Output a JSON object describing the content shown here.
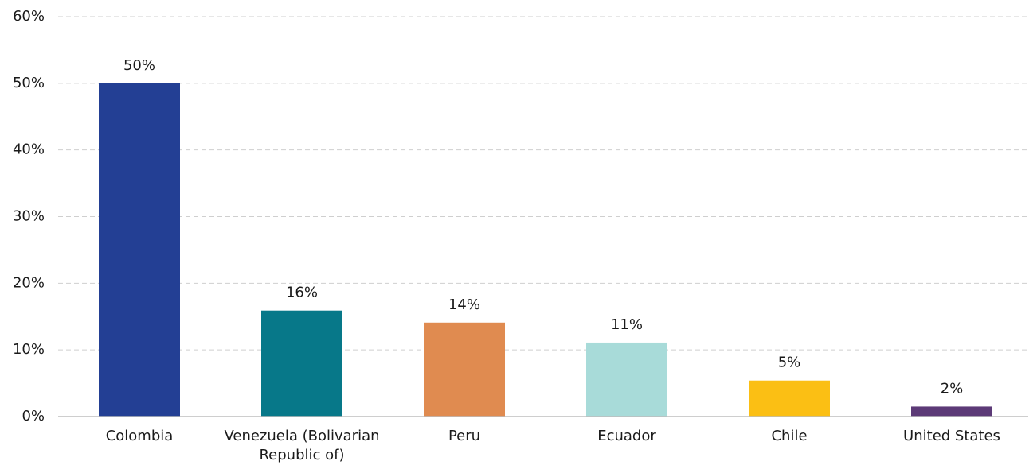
{
  "chart_data": {
    "type": "bar",
    "categories": [
      "Colombia",
      "Venezuela (Bolivarian Republic of)",
      "Peru",
      "Ecuador",
      "Chile",
      "United States"
    ],
    "values": [
      50,
      15.9,
      14.1,
      11.1,
      5.4,
      1.5
    ],
    "value_labels": [
      "50%",
      "16%",
      "14%",
      "11%",
      "5%",
      "2%"
    ],
    "colors": [
      "#233f94",
      "#077889",
      "#e08b50",
      "#a8dbd9",
      "#fbbf14",
      "#5c3a77"
    ],
    "ylim": [
      0,
      60
    ],
    "yticks": [
      {
        "value": 0,
        "label": "0%"
      },
      {
        "value": 10,
        "label": "10%"
      },
      {
        "value": 20,
        "label": "20%"
      },
      {
        "value": 30,
        "label": "30%"
      },
      {
        "value": 40,
        "label": "40%"
      },
      {
        "value": 50,
        "label": "50%"
      },
      {
        "value": 60,
        "label": "60%"
      }
    ],
    "grid": true
  }
}
